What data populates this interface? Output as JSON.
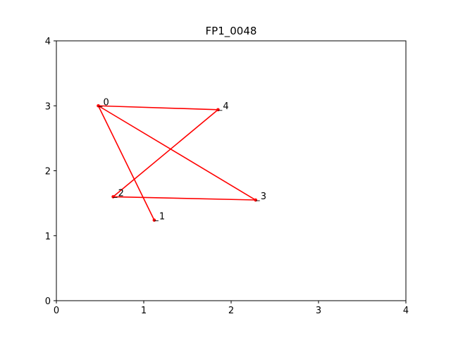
{
  "chart_data": {
    "type": "line",
    "title": "FP1_0048",
    "xlabel": "",
    "ylabel": "",
    "xlim": [
      0,
      4
    ],
    "ylim": [
      0,
      4
    ],
    "xticks": [
      "0",
      "1",
      "2",
      "3",
      "4"
    ],
    "yticks": [
      "0",
      "1",
      "2",
      "3",
      "4"
    ],
    "grid": false,
    "color": "#ff0000",
    "points": [
      {
        "label": "0",
        "x": 0.48,
        "y": 3.0
      },
      {
        "label": "1",
        "x": 1.12,
        "y": 1.24
      },
      {
        "label": "2",
        "x": 0.65,
        "y": 1.6
      },
      {
        "label": "3",
        "x": 2.28,
        "y": 1.55
      },
      {
        "label": "4",
        "x": 1.85,
        "y": 2.94
      }
    ],
    "path_order": [
      "1",
      "0",
      "4",
      "2",
      "3",
      "0"
    ]
  }
}
